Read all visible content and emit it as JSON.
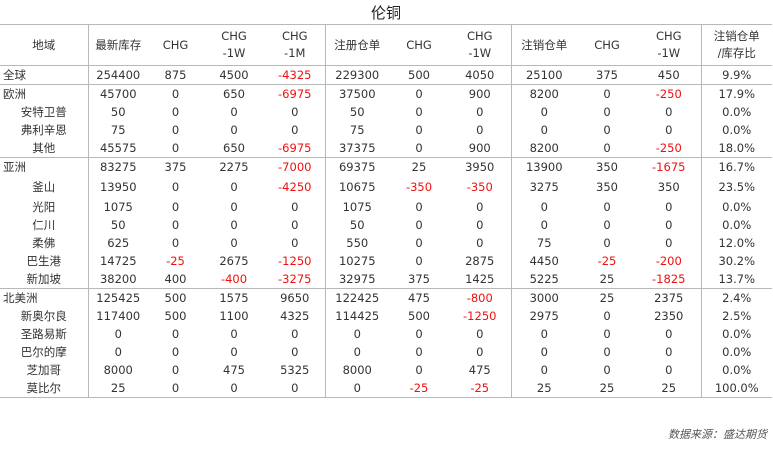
{
  "title": "伦铜",
  "headers": [
    "地域",
    "最新库存",
    "CHG",
    "CHG\n-1W",
    "CHG\n-1M",
    "注册仓单",
    "CHG",
    "CHG\n-1W",
    "注销仓单",
    "CHG",
    "CHG\n-1W",
    "注销仓单\n/库存比"
  ],
  "rows": [
    {
      "region": "全球",
      "level": "top",
      "cells": [
        "254400",
        "875",
        "4500",
        "-4325",
        "229300",
        "500",
        "4050",
        "25100",
        "375",
        "450",
        "9.9%"
      ]
    },
    {
      "region": "欧洲",
      "level": "top",
      "cells": [
        "45700",
        "0",
        "650",
        "-6975",
        "37500",
        "0",
        "900",
        "8200",
        "0",
        "-250",
        "17.9%"
      ]
    },
    {
      "region": "安特卫普",
      "level": "sub",
      "cells": [
        "50",
        "0",
        "0",
        "0",
        "50",
        "0",
        "0",
        "0",
        "0",
        "0",
        "0.0%"
      ]
    },
    {
      "region": "弗利辛恩",
      "level": "sub",
      "cells": [
        "75",
        "0",
        "0",
        "0",
        "75",
        "0",
        "0",
        "0",
        "0",
        "0",
        "0.0%"
      ]
    },
    {
      "region": "其他",
      "level": "sub",
      "cells": [
        "45575",
        "0",
        "650",
        "-6975",
        "37375",
        "0",
        "900",
        "8200",
        "0",
        "-250",
        "18.0%"
      ]
    },
    {
      "region": "亚洲",
      "level": "top",
      "cells": [
        "83275",
        "375",
        "2275",
        "-7000",
        "69375",
        "25",
        "3950",
        "13900",
        "350",
        "-1675",
        "16.7%"
      ]
    },
    {
      "region": "釜山",
      "level": "sub",
      "cells": [
        "13950",
        "0",
        "0",
        "-4250",
        "10675",
        "-350",
        "-350",
        "3275",
        "350",
        "350",
        "23.5%"
      ]
    },
    {
      "region": "光阳",
      "level": "sub",
      "cells": [
        "1075",
        "0",
        "0",
        "0",
        "1075",
        "0",
        "0",
        "0",
        "0",
        "0",
        "0.0%"
      ]
    },
    {
      "region": "仁川",
      "level": "sub",
      "cells": [
        "50",
        "0",
        "0",
        "0",
        "50",
        "0",
        "0",
        "0",
        "0",
        "0",
        "0.0%"
      ]
    },
    {
      "region": "柔佛",
      "level": "sub",
      "cells": [
        "625",
        "0",
        "0",
        "0",
        "550",
        "0",
        "0",
        "75",
        "0",
        "0",
        "12.0%"
      ]
    },
    {
      "region": "巴生港",
      "level": "sub",
      "cells": [
        "14725",
        "-25",
        "2675",
        "-1250",
        "10275",
        "0",
        "2875",
        "4450",
        "-25",
        "-200",
        "30.2%"
      ]
    },
    {
      "region": "新加坡",
      "level": "sub",
      "cells": [
        "38200",
        "400",
        "-400",
        "-3275",
        "32975",
        "375",
        "1425",
        "5225",
        "25",
        "-1825",
        "13.7%"
      ]
    },
    {
      "region": "北美洲",
      "level": "top",
      "cells": [
        "125425",
        "500",
        "1575",
        "9650",
        "122425",
        "475",
        "-800",
        "3000",
        "25",
        "2375",
        "2.4%"
      ]
    },
    {
      "region": "新奥尔良",
      "level": "sub",
      "cells": [
        "117400",
        "500",
        "1100",
        "4325",
        "114425",
        "500",
        "-1250",
        "2975",
        "0",
        "2350",
        "2.5%"
      ]
    },
    {
      "region": "圣路易斯",
      "level": "sub",
      "cells": [
        "0",
        "0",
        "0",
        "0",
        "0",
        "0",
        "0",
        "0",
        "0",
        "0",
        "0.0%"
      ]
    },
    {
      "region": "巴尔的摩",
      "level": "sub",
      "cells": [
        "0",
        "0",
        "0",
        "0",
        "0",
        "0",
        "0",
        "0",
        "0",
        "0",
        "0.0%"
      ]
    },
    {
      "region": "芝加哥",
      "level": "sub",
      "cells": [
        "8000",
        "0",
        "475",
        "5325",
        "8000",
        "0",
        "475",
        "0",
        "0",
        "0",
        "0.0%"
      ]
    },
    {
      "region": "莫比尔",
      "level": "sub",
      "cells": [
        "25",
        "0",
        "0",
        "0",
        "0",
        "-25",
        "-25",
        "25",
        "25",
        "25",
        "100.0%"
      ]
    }
  ],
  "source": "数据来源：盛达期货",
  "colors": {
    "negative": "#ee1111",
    "text": "#333333",
    "border": "#b8b8b8"
  }
}
